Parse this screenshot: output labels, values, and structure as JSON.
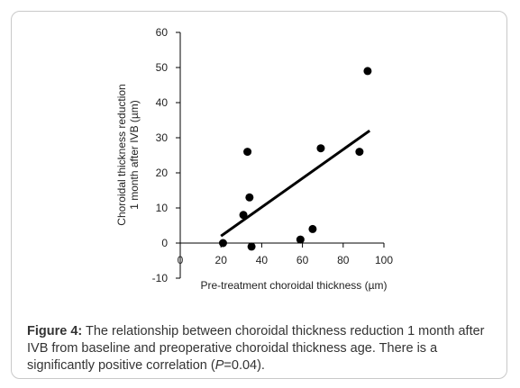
{
  "chart_data": {
    "type": "scatter",
    "title": "",
    "xlabel_before": "Pre-treatment choroidal thickness (",
    "xlabel_unit": "µm",
    "xlabel_after": ")",
    "ylabel_line1": "Choroidal thickness reduction",
    "ylabel_line2_before": "1 month after IVB (",
    "ylabel_line2_unit": "µm",
    "ylabel_line2_after": ")",
    "xlim": [
      0,
      100
    ],
    "ylim": [
      -10,
      60
    ],
    "x_ticks": [
      0,
      20,
      40,
      60,
      80,
      100
    ],
    "y_ticks": [
      -10,
      0,
      10,
      20,
      30,
      40,
      50,
      60
    ],
    "grid": false,
    "points": [
      {
        "x": 21,
        "y": 0
      },
      {
        "x": 31,
        "y": 8
      },
      {
        "x": 33,
        "y": 26
      },
      {
        "x": 34,
        "y": 13
      },
      {
        "x": 35,
        "y": -1
      },
      {
        "x": 59,
        "y": 1
      },
      {
        "x": 65,
        "y": 4
      },
      {
        "x": 69,
        "y": 27
      },
      {
        "x": 88,
        "y": 26
      },
      {
        "x": 92,
        "y": 49
      }
    ],
    "trendline": {
      "x": [
        20,
        93
      ],
      "y": [
        2,
        32
      ]
    }
  },
  "caption": {
    "label": "Figure 4:",
    "text_before_p": " The relationship between choroidal thickness reduction 1 month after IVB from baseline and preoperative choroidal thickness age. There is a significantly positive correlation (",
    "p_symbol": "P",
    "text_after_p": "=0.04)."
  }
}
